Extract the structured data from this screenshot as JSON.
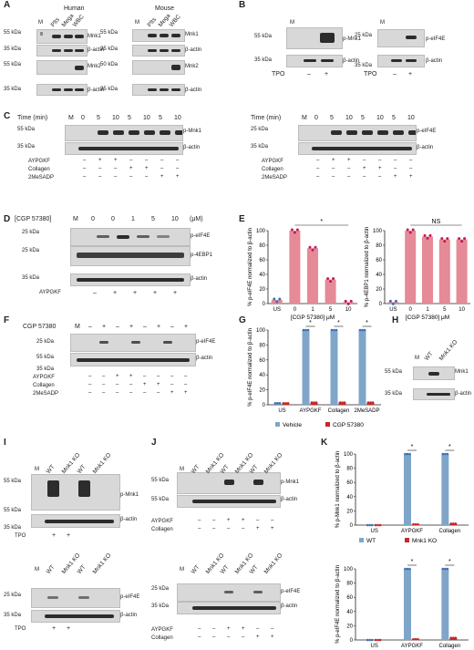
{
  "panels": {
    "A": "A",
    "B": "B",
    "C": "C",
    "D": "D",
    "E": "E",
    "F": "F",
    "G": "G",
    "H": "H",
    "I": "I",
    "J": "J",
    "K": "K"
  },
  "common": {
    "M": "M",
    "minus": "–",
    "plus": "+",
    "bactin": "β-actin",
    "kda25": "25 kDa",
    "kda35": "35 kDa",
    "kda50": "50 kDa",
    "kda55": "55 kDa"
  },
  "A": {
    "human": "Human",
    "mouse": "Mouse",
    "lanes": [
      "Plts",
      "Mega",
      "WBC"
    ],
    "mnk1": "Mnk1",
    "mnk2": "Mnk2"
  },
  "B": {
    "pmnk1": "p-Mnk1",
    "peif4e": "p-eIF4E",
    "tpo": "TPO"
  },
  "C": {
    "time": "Time (min)",
    "times": [
      "0",
      "5",
      "10",
      "5",
      "10",
      "5",
      "10"
    ],
    "pmnk1": "p-Mnk1",
    "peif4e": "p-eIF4E",
    "ay": "AYPGKF",
    "col": "Collagen",
    "me": "2MeSADP"
  },
  "D": {
    "cgp": "[CGP 57380]",
    "doses": [
      "0",
      "0",
      "1",
      "5",
      "10"
    ],
    "unit": "(μM)",
    "peif4e": "p-eIF4E",
    "p4ebp1": "p-4EBP1",
    "ay": "AYPGKF"
  },
  "E": {
    "ylabel1": "% p-eIF4E normalized to β-actin",
    "ylabel2": "% p-4EBP1 normalized to β-actin",
    "xlabel": "[CGP 57380] μM",
    "star": "*",
    "ns": "NS",
    "cats": [
      "US",
      "0",
      "1",
      "5",
      "10"
    ],
    "yticks": [
      "0",
      "20",
      "40",
      "60",
      "80",
      "100"
    ]
  },
  "F": {
    "cgp": "CGP 57380",
    "peif4e": "p-eIF4E",
    "ay": "AYPGKF",
    "col": "Collagen",
    "me": "2MeSADP"
  },
  "G": {
    "ylabel": "% p-eIF4E normalized to β-actin",
    "cats": [
      "US",
      "AYPGKF",
      "Collagen",
      "2MeSADP"
    ],
    "legend": [
      "Vehicle",
      "CGP 57380"
    ],
    "star": "*",
    "yticks": [
      "0",
      "20",
      "40",
      "60",
      "80",
      "100"
    ]
  },
  "H": {
    "wt": "WT",
    "ko": "Mnk1 KO",
    "mnk1": "Mnk1"
  },
  "I": {
    "wt": "WT",
    "ko": "Mnk1 KO",
    "pmnk1": "p-Mnk1",
    "peif4e": "p-eIF4E",
    "tpo": "TPO"
  },
  "J": {
    "wt": "WT",
    "ko": "Mnk1 KO",
    "pmnk1": "p-Mnk1",
    "peif4e": "p-eIF4E",
    "ay": "AYPGKF",
    "col": "Collagen"
  },
  "K": {
    "ylabel1": "% p-Mnk1 normalized to β-actin",
    "ylabel2": "% p-eIF4E normalized to β-actin",
    "cats": [
      "US",
      "AYPGKF",
      "Collagen"
    ],
    "legend": [
      "WT",
      "Mnk1 KO"
    ],
    "star": "*",
    "yticks": [
      "0",
      "20",
      "40",
      "60",
      "80",
      "100"
    ]
  },
  "chart_data": [
    {
      "type": "bar",
      "panel": "E-left",
      "categories": [
        "US",
        "0",
        "1",
        "5",
        "10"
      ],
      "values": [
        5,
        100,
        76,
        33,
        2
      ],
      "xlabel": "[CGP 57380] μM",
      "ylabel": "% p-eIF4E normalized to β-actin",
      "ylim": [
        0,
        100
      ],
      "colors": {
        "bar": "#e58a96",
        "dots": [
          "#3b6fb6",
          "#c2185b"
        ]
      }
    },
    {
      "type": "bar",
      "panel": "E-right",
      "categories": [
        "US",
        "0",
        "1",
        "5",
        "10"
      ],
      "values": [
        2,
        100,
        92,
        88,
        88
      ],
      "xlabel": "[CGP 57380] μM",
      "ylabel": "% p-4EBP1 normalized to β-actin",
      "ylim": [
        0,
        100
      ],
      "colors": {
        "bar": "#e58a96"
      }
    },
    {
      "type": "bar",
      "panel": "G",
      "categories": [
        "US",
        "AYPGKF",
        "Collagen",
        "2MeSADP"
      ],
      "series": [
        {
          "name": "Vehicle",
          "values": [
            2,
            100,
            100,
            100
          ]
        },
        {
          "name": "CGP 57380",
          "values": [
            2,
            3,
            3,
            3
          ]
        }
      ],
      "ylabel": "% p-eIF4E normalized to β-actin",
      "ylim": [
        0,
        100
      ],
      "colors": {
        "Vehicle": "#7fa6c9",
        "CGP 57380": "#c62828"
      }
    },
    {
      "type": "bar",
      "panel": "K-top",
      "categories": [
        "US",
        "AYPGKF",
        "Collagen"
      ],
      "series": [
        {
          "name": "WT",
          "values": [
            0,
            100,
            100
          ]
        },
        {
          "name": "Mnk1 KO",
          "values": [
            0,
            1,
            2
          ]
        }
      ],
      "ylabel": "% p-Mnk1 normalized to β-actin",
      "ylim": [
        0,
        100
      ],
      "colors": {
        "WT": "#7fa6c9",
        "Mnk1 KO": "#c62828"
      }
    },
    {
      "type": "bar",
      "panel": "K-bottom",
      "categories": [
        "US",
        "AYPGKF",
        "Collagen"
      ],
      "series": [
        {
          "name": "WT",
          "values": [
            0,
            100,
            100
          ]
        },
        {
          "name": "Mnk1 KO",
          "values": [
            0,
            1,
            3
          ]
        }
      ],
      "ylabel": "% p-eIF4E normalized to β-actin",
      "ylim": [
        0,
        100
      ],
      "colors": {
        "WT": "#7fa6c9",
        "Mnk1 KO": "#c62828"
      }
    }
  ]
}
